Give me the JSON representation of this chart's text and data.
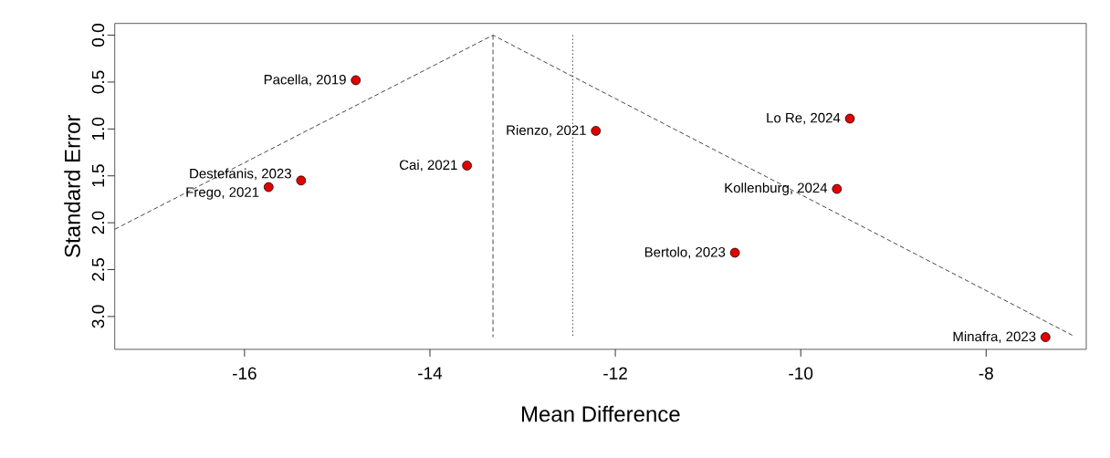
{
  "chart_data": {
    "type": "scatter",
    "xlabel": "Mean Difference",
    "ylabel": "Standard Error",
    "xlim": [
      -17.4,
      -6.92
    ],
    "ylim": [
      3.35,
      -0.125
    ],
    "xticks": [
      -16,
      -14,
      -12,
      -10,
      -8
    ],
    "yticks": [
      {
        "value": 0,
        "label": "0.0"
      },
      {
        "value": 0.5,
        "label": "0.5"
      },
      {
        "value": 1,
        "label": "1.0"
      },
      {
        "value": 1.5,
        "label": "1.5"
      },
      {
        "value": 2,
        "label": "2.0"
      },
      {
        "value": 2.5,
        "label": "2.5"
      },
      {
        "value": 3,
        "label": "3.0"
      }
    ],
    "grid": false,
    "series": [
      {
        "type": "line",
        "line_style": "dashed",
        "marker": "none",
        "color": "#333333",
        "x": [
          -17.4,
          -13.32,
          -7.07
        ],
        "values": [
          2.07,
          0,
          3.2
        ]
      },
      {
        "type": "line",
        "line_style": "dashed",
        "marker": "none",
        "color": "#333333",
        "x": [
          -13.32,
          -13.32
        ],
        "values": [
          0,
          3.22
        ]
      },
      {
        "type": "line",
        "line_style": "dotted",
        "marker": "none",
        "color": "#333333",
        "x": [
          -12.46,
          -12.46
        ],
        "values": [
          0,
          3.22
        ]
      },
      {
        "type": "scatter",
        "marker": "circle",
        "color": "#e00000",
        "x": [
          -14.8,
          -15.39,
          -15.74,
          -13.6,
          -12.21,
          -9.47,
          -9.61,
          -10.71,
          -7.36
        ],
        "values": [
          0.48,
          1.55,
          1.62,
          1.39,
          1.02,
          0.89,
          1.64,
          2.32,
          3.22
        ]
      }
    ],
    "annotations": [
      {
        "text": "Pacella, 2019",
        "x": -14.8,
        "y": 0.48
      },
      {
        "text": "Destefanis, 2023",
        "x": -15.39,
        "y": 1.55
      },
      {
        "text": "Frego, 2021",
        "x": -15.74,
        "y": 1.62
      },
      {
        "text": "Cai, 2021",
        "x": -13.6,
        "y": 1.39
      },
      {
        "text": "Rienzo, 2021",
        "x": -12.21,
        "y": 1.02
      },
      {
        "text": "Lo Re, 2024",
        "x": -9.47,
        "y": 0.89
      },
      {
        "text": "Kollenburg, 2024",
        "x": -9.61,
        "y": 1.64
      },
      {
        "text": "Bertolo, 2023",
        "x": -10.71,
        "y": 2.32
      },
      {
        "text": "Minafra, 2023",
        "x": -7.36,
        "y": 3.22
      }
    ]
  }
}
